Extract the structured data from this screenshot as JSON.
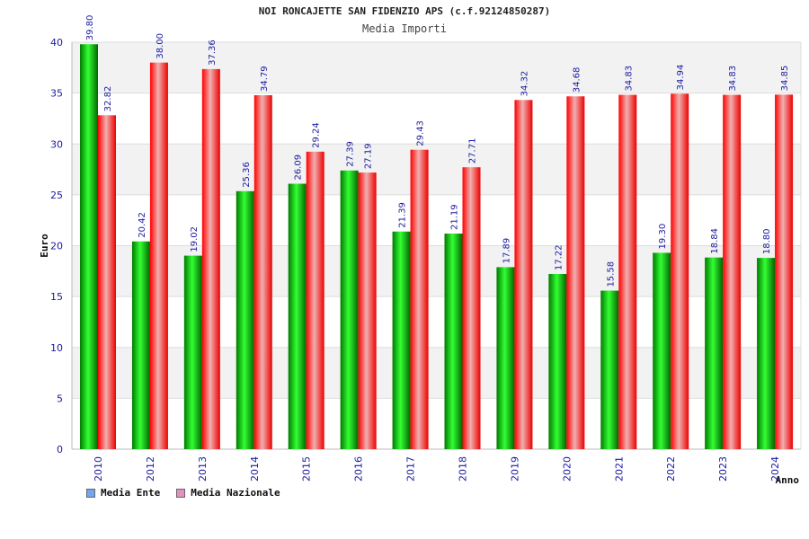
{
  "chart_data": {
    "type": "bar",
    "title": "NOI RONCAJETTE SAN FIDENZIO APS (c.f.92124850287)",
    "subtitle": "Media Importi",
    "xlabel": "Anno",
    "ylabel": "Euro",
    "ylim": [
      0,
      40
    ],
    "yticks": [
      "0",
      "5",
      "10",
      "15",
      "20",
      "25",
      "30",
      "35",
      "40"
    ],
    "grid": true,
    "legend_position": "bottom-left",
    "categories": [
      "2010",
      "2012",
      "2013",
      "2014",
      "2015",
      "2016",
      "2017",
      "2018",
      "2019",
      "2020",
      "2021",
      "2022",
      "2023",
      "2024"
    ],
    "series": [
      {
        "name": "Media Ente",
        "legend_color": "#6fa8f0",
        "bar_color": "#00c000",
        "values": [
          39.8,
          20.42,
          19.02,
          25.36,
          26.09,
          27.39,
          21.39,
          21.19,
          17.89,
          17.22,
          15.58,
          19.3,
          18.84,
          18.8
        ],
        "labels": [
          "39.80",
          "20.42",
          "19.02",
          "25.36",
          "26.09",
          "27.39",
          "21.39",
          "21.19",
          "17.89",
          "17.22",
          "15.58",
          "19.30",
          "18.84",
          "18.80"
        ]
      },
      {
        "name": "Media Nazionale",
        "legend_color": "#e58fbf",
        "bar_color": "#ff2020",
        "values": [
          32.82,
          38.0,
          37.36,
          34.79,
          29.24,
          27.19,
          29.43,
          27.71,
          34.32,
          34.68,
          34.83,
          34.94,
          34.83,
          34.85
        ],
        "labels": [
          "32.82",
          "38.00",
          "37.36",
          "34.79",
          "29.24",
          "27.19",
          "29.43",
          "27.71",
          "34.32",
          "34.68",
          "34.83",
          "34.94",
          "34.83",
          "34.85"
        ]
      }
    ]
  }
}
